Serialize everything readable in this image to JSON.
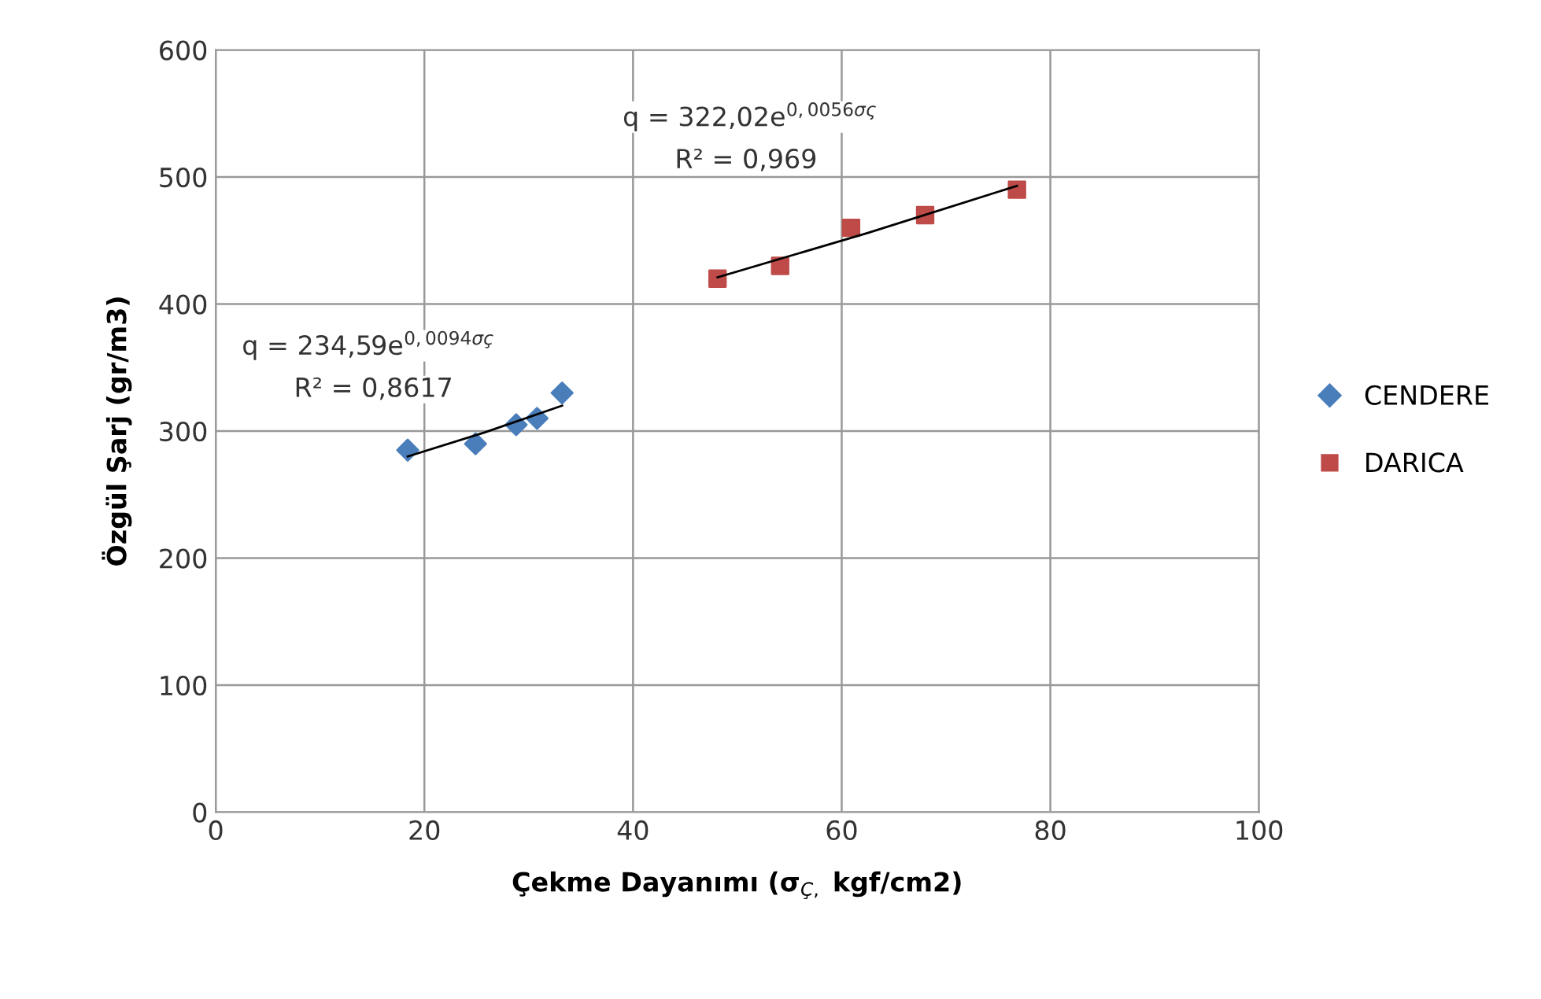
{
  "chart_data": {
    "type": "scatter",
    "xlabel": "Çekme Dayanımı (σ$_{Ç,}$ kgf/cm2)",
    "ylabel": "Özgül Şarj (gr/m3)",
    "series": [
      {
        "name": "CENDERE",
        "marker": "diamond",
        "color": "#4a7ebb",
        "x": [
          18.4,
          24.9,
          28.8,
          30.8,
          33.2
        ],
        "values": [
          285,
          290,
          305,
          310,
          330
        ]
      },
      {
        "name": "DARICA",
        "marker": "square",
        "color": "#be4b48",
        "x": [
          48.1,
          54.1,
          60.9,
          68.0,
          76.8
        ],
        "values": [
          420,
          430,
          460,
          470,
          490
        ]
      },
      {
        "type": "line",
        "marker": "none",
        "color": "#000000",
        "x": [
          18.4,
          25.8,
          33.2
        ],
        "values": [
          280,
          299,
          320
        ]
      },
      {
        "type": "line",
        "marker": "none",
        "color": "#000000",
        "x": [
          48.1,
          62.5,
          76.8
        ],
        "values": [
          421,
          456,
          493
        ]
      }
    ],
    "annotations": [
      "q = 234,59e$^{0,0094σç}$",
      "R² = 0,8617",
      "q = 322,02e$^{0,0056σς}$",
      "R² = 0,969"
    ],
    "xlim": [
      0,
      100
    ],
    "xticks": [
      0,
      20,
      40,
      60,
      80,
      100
    ],
    "ylim": [
      0,
      600
    ],
    "yticks": [
      0,
      100,
      200,
      300,
      400,
      500,
      600
    ],
    "grid": true,
    "legend": "right"
  }
}
